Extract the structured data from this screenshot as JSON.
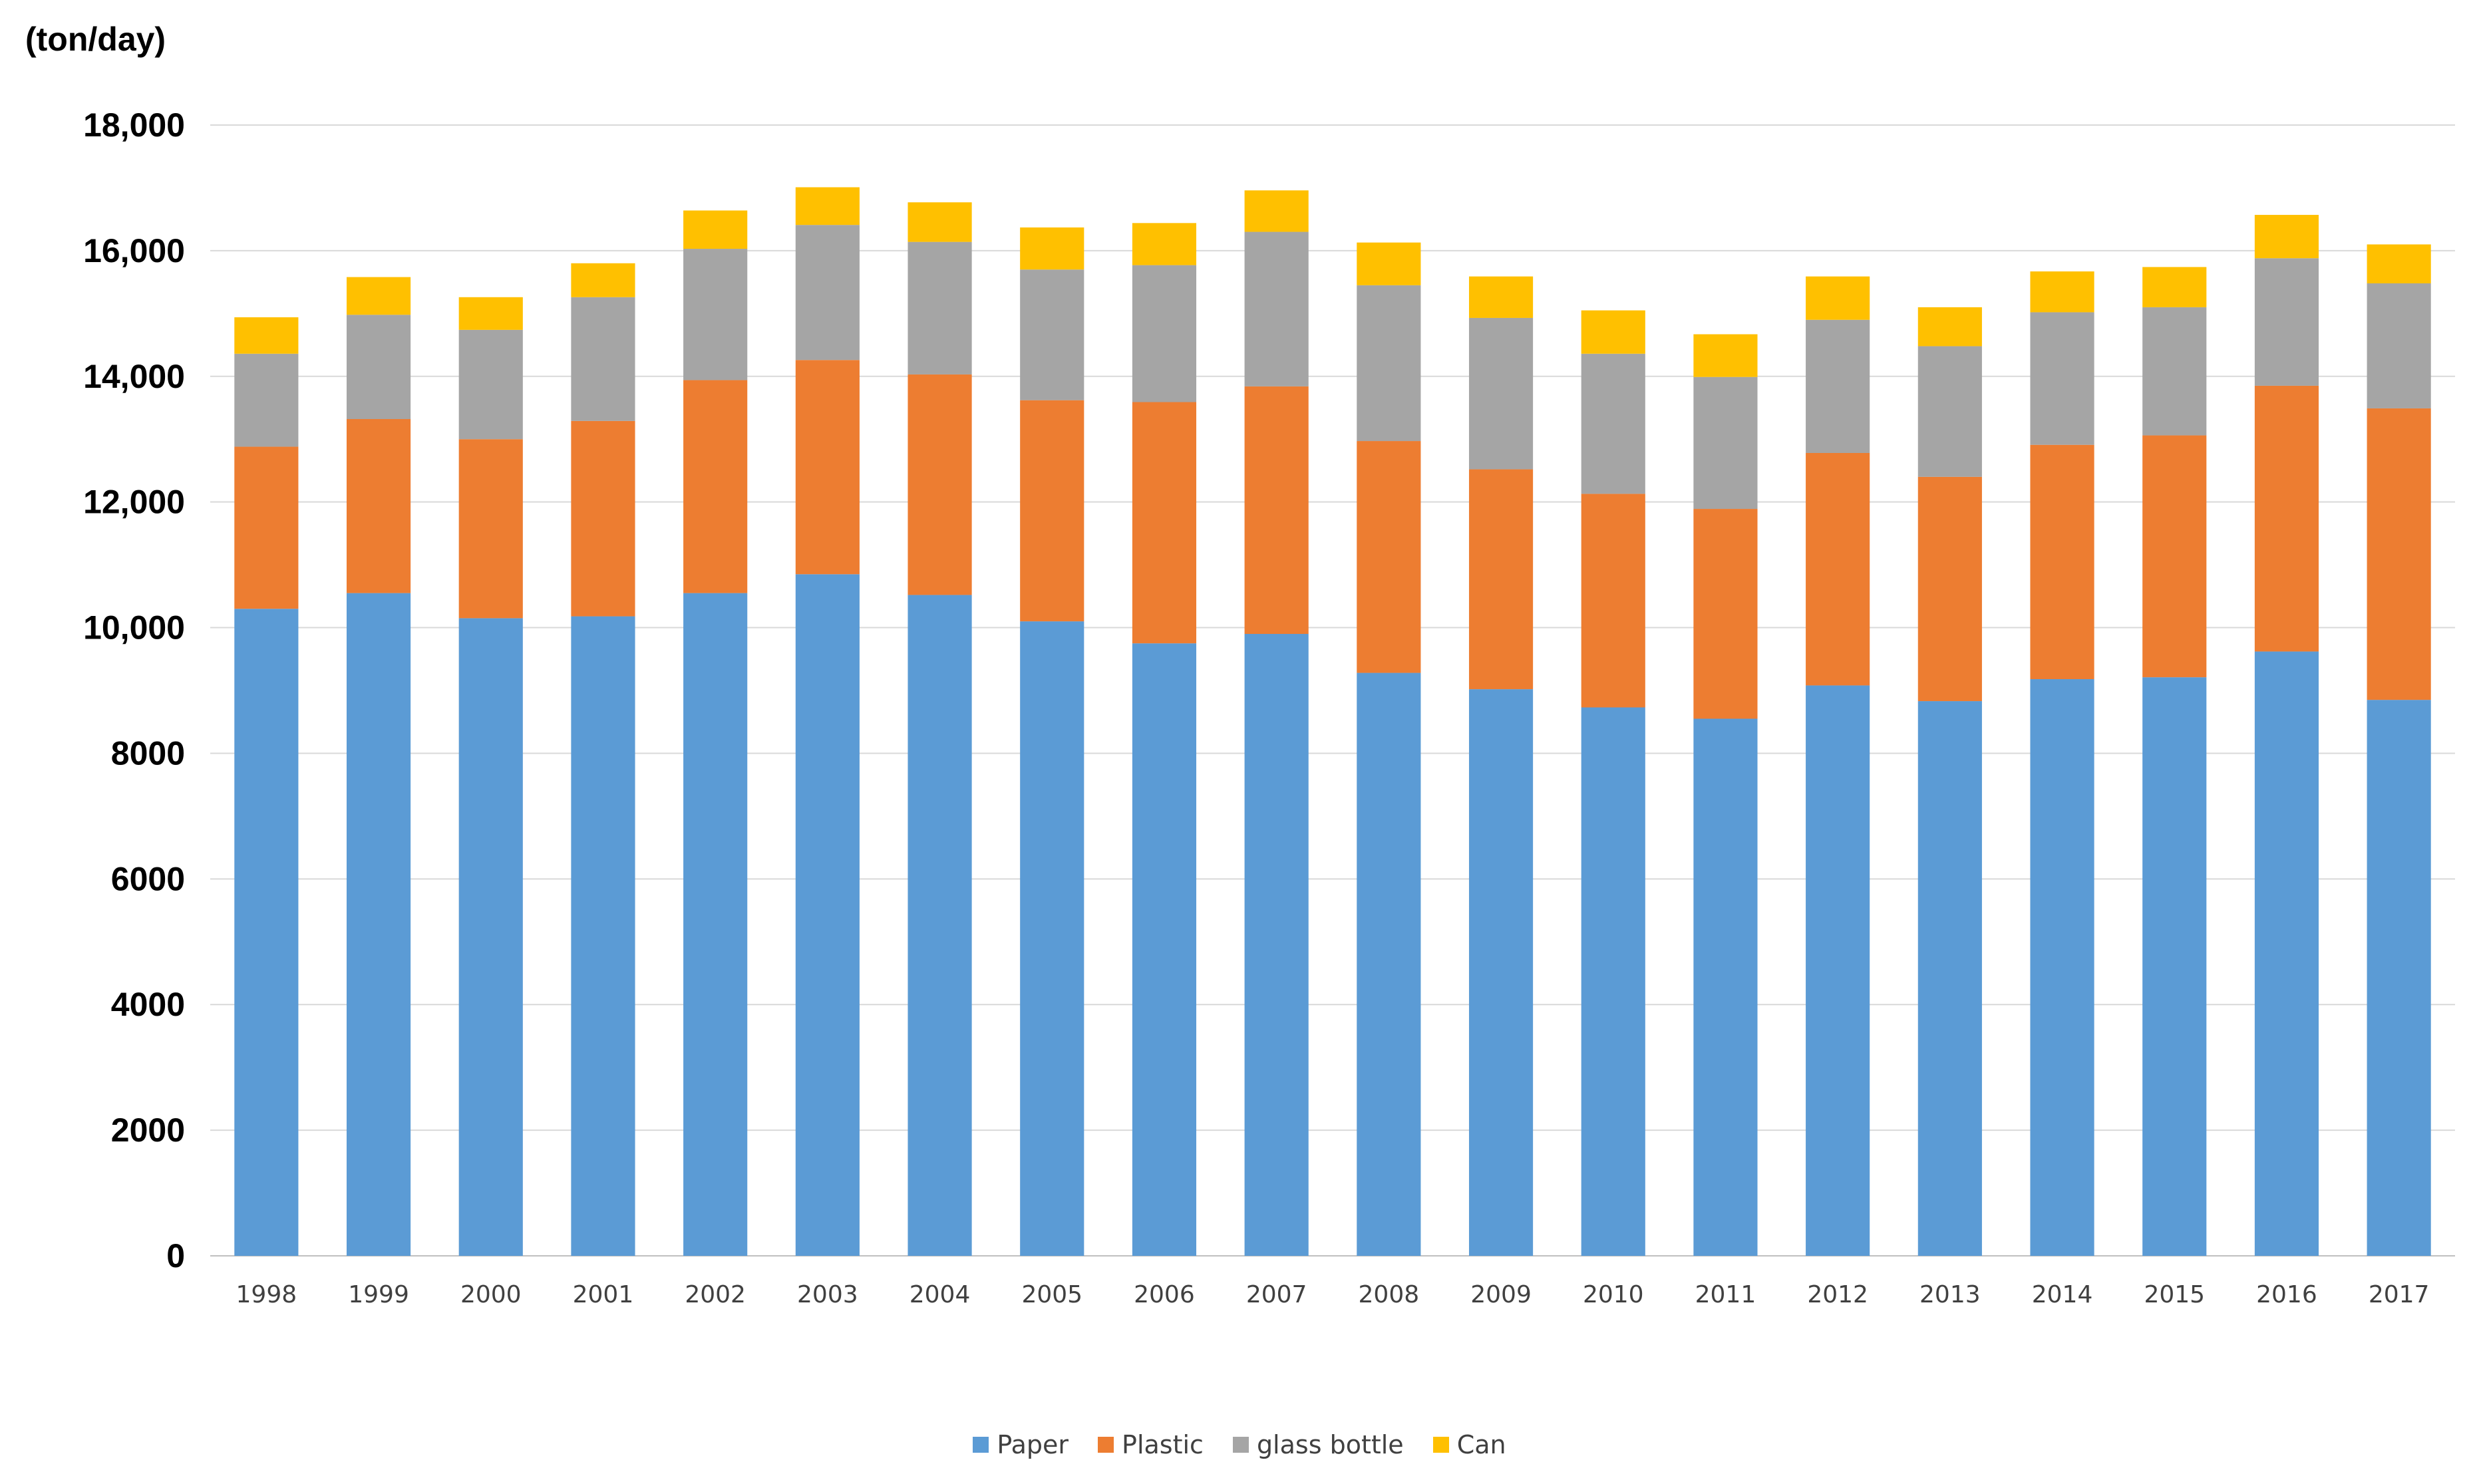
{
  "chart_data": {
    "type": "bar",
    "stacked": true,
    "unit_label": "(ton/day)",
    "categories": [
      "1998",
      "1999",
      "2000",
      "2001",
      "2002",
      "2003",
      "2004",
      "2005",
      "2006",
      "2007",
      "2008",
      "2009",
      "2010",
      "2011",
      "2012",
      "2013",
      "2014",
      "2015",
      "2016",
      "2017"
    ],
    "series": [
      {
        "name": "Paper",
        "color": "#5B9BD5",
        "values": [
          10300,
          10550,
          10150,
          10180,
          10550,
          10850,
          10520,
          10100,
          9750,
          9900,
          9280,
          9020,
          8730,
          8550,
          9080,
          8830,
          9180,
          9210,
          9620,
          8850
        ]
      },
      {
        "name": "Plastic",
        "color": "#ED7D31",
        "values": [
          2580,
          2770,
          2850,
          3110,
          3390,
          3410,
          3510,
          3520,
          3840,
          3940,
          3690,
          3500,
          3400,
          3340,
          3700,
          3570,
          3730,
          3850,
          4230,
          4640
        ]
      },
      {
        "name": "glass bottle",
        "color": "#A5A5A5",
        "values": [
          1480,
          1660,
          1740,
          1970,
          2090,
          2150,
          2110,
          2080,
          2180,
          2460,
          2480,
          2410,
          2230,
          2100,
          2120,
          2080,
          2110,
          2040,
          2030,
          1990
        ]
      },
      {
        "name": "Can",
        "color": "#FFC000",
        "values": [
          580,
          600,
          520,
          540,
          610,
          600,
          630,
          670,
          670,
          660,
          680,
          660,
          690,
          680,
          690,
          620,
          650,
          640,
          690,
          620
        ]
      }
    ],
    "ylim": [
      0,
      18000
    ],
    "yticks": [
      0,
      2000,
      4000,
      6000,
      8000,
      10000,
      12000,
      14000,
      16000,
      18000
    ],
    "ytick_labels": [
      "0",
      "2000",
      "4000",
      "6000",
      "8000",
      "10,000",
      "12,000",
      "14,000",
      "16,000",
      "18,000"
    ],
    "legend_position": "bottom",
    "grid": true,
    "xlabel": "",
    "ylabel": ""
  }
}
